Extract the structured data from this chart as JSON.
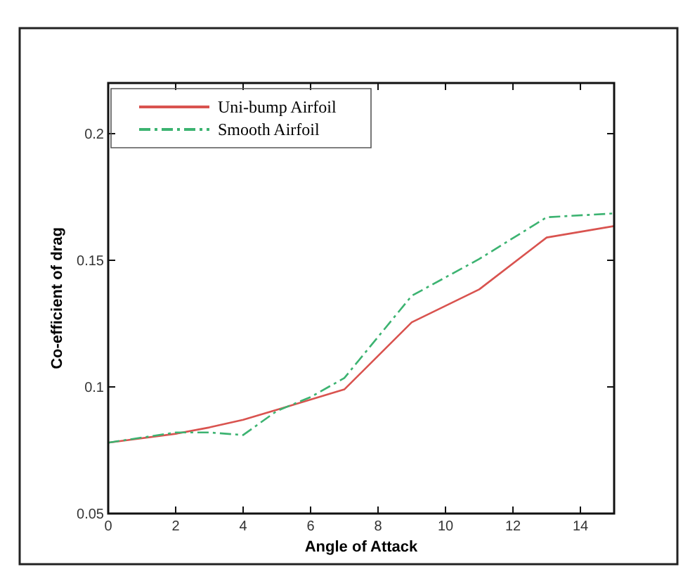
{
  "chart_data": {
    "type": "line",
    "xlabel": "Angle of Attack",
    "ylabel": "Co-efficient of drag",
    "xlim": [
      0,
      15
    ],
    "ylim": [
      0.05,
      0.22
    ],
    "xticks": [
      0,
      2,
      4,
      6,
      8,
      10,
      12,
      14
    ],
    "yticks": [
      0.05,
      0.1,
      0.15,
      0.2
    ],
    "x": [
      0,
      2,
      3,
      4,
      5,
      6,
      7,
      9,
      11,
      13,
      15
    ],
    "series": [
      {
        "name": "Uni-bump Airfoil",
        "color": "#d9534f",
        "line_style": "solid",
        "values": [
          0.078,
          0.0815,
          0.084,
          0.087,
          0.091,
          0.095,
          0.099,
          0.1255,
          0.1385,
          0.159,
          0.1635
        ]
      },
      {
        "name": "Smooth Airfoil",
        "color": "#3cb371",
        "line_style": "dashed",
        "values": [
          0.078,
          0.082,
          0.082,
          0.081,
          0.0905,
          0.096,
          0.1035,
          0.136,
          0.1505,
          0.167,
          0.1685
        ]
      }
    ],
    "legend": "top left",
    "grid": false,
    "marker": "none"
  }
}
